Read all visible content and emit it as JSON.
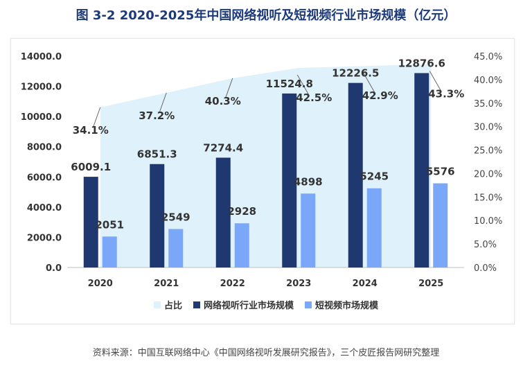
{
  "title": "图 3-2 2020-2025年中国网络视听及短视频行业市场规模（亿元）",
  "source": "资料来源：中国互联网络中心《中国网络视听发展研究报告》，三个皮匠报告网研究整理",
  "colors": {
    "network": "#1f3870",
    "short_video": "#7aa7f7",
    "share_area": "#dff1fb",
    "title": "#1c3a7a"
  },
  "chart_data": {
    "type": "bar",
    "categories": [
      "2020",
      "2021",
      "2022",
      "2023",
      "2024",
      "2025"
    ],
    "series": [
      {
        "name": "网络视听行业市场规模",
        "type": "bar",
        "axis": "left",
        "values": [
          6009.1,
          6851.3,
          7274.4,
          11524.8,
          12226.5,
          12876.6
        ],
        "labels": [
          "6009.1",
          "6851.3",
          "7274.4",
          "11524.8",
          "12226.5",
          "12876.6"
        ]
      },
      {
        "name": "短视频市场规模",
        "type": "bar",
        "axis": "left",
        "values": [
          2051,
          2549,
          2928,
          4898,
          5245,
          5576
        ],
        "labels": [
          "2051",
          "2549",
          "2928",
          "4898",
          "5245",
          "5576"
        ]
      },
      {
        "name": "占比",
        "type": "area",
        "axis": "right",
        "values": [
          34.1,
          37.2,
          40.3,
          42.5,
          42.9,
          43.3
        ],
        "labels": [
          "34.1%",
          "37.2%",
          "40.3%",
          "42.5%",
          "42.9%",
          "43.3%"
        ]
      }
    ],
    "left_axis": {
      "min": 0,
      "max": 14000,
      "ticks": [
        "0.0",
        "2000.0",
        "4000.0",
        "6000.0",
        "8000.0",
        "10000.0",
        "12000.0",
        "14000.0"
      ]
    },
    "right_axis": {
      "min": 0,
      "max": 45,
      "ticks": [
        "0.0%",
        "5.0%",
        "10.0%",
        "15.0%",
        "20.0%",
        "25.0%",
        "30.0%",
        "35.0%",
        "40.0%",
        "45.0%"
      ]
    },
    "legend": [
      "占比",
      "网络视听行业市场规模",
      "短视频市场规模"
    ]
  }
}
